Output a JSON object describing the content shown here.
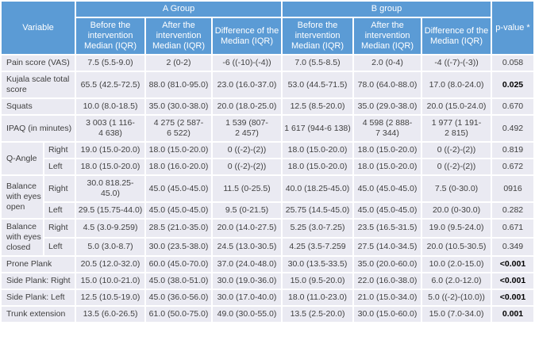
{
  "table": {
    "colors": {
      "header_blue": "#5b9bd5",
      "cell_bg": "#eaeaf2",
      "grid_white": "#ffffff",
      "body_text": "#3f3f3f",
      "header_text": "#ffffff"
    },
    "header": {
      "variable": "Variable",
      "group_a": "A Group",
      "group_b": "B group",
      "p_value": "p-value *",
      "sub_a_before": "Before the\nintervention\nMedian (IQR)",
      "sub_a_after": "After the\nintervention\nMedian (IQR)",
      "sub_a_diff": "Difference of the\nMedian (IQR)",
      "sub_b_before": "Before the\nintervention\nMedian (IQR)",
      "sub_b_after": "After the\nintervention\nMedian (IQR)",
      "sub_b_diff": "Difference of the\nMedian (IQR)"
    },
    "rows": [
      {
        "label": "Pain score (VAS)",
        "cells": [
          "7.5 (5.5-9.0)",
          "2 (0-2)",
          "-6 ((-10)-(-4))",
          "7.0 (5.5-8.5)",
          "2.0 (0-4)",
          "-4 ((-7)-(-3))"
        ],
        "p": "0.058",
        "bold": false
      },
      {
        "label": "Kujala scale total score",
        "cells": [
          "65.5 (42.5-72.5)",
          "88.0 (81.0-95.0)",
          "23.0 (16.0-37.0)",
          "53.0 (44.5-71.5)",
          "78.0 (64.0-88.0)",
          "17.0 (8.0-24.0)"
        ],
        "p": "0.025",
        "bold": true
      },
      {
        "label": "Squats",
        "cells": [
          "10.0 (8.0-18.5)",
          "35.0 (30.0-38.0)",
          "20.0 (18.0-25.0)",
          "12.5 (8.5-20.0)",
          "35.0 (29.0-38.0)",
          "20.0 (15.0-24.0)"
        ],
        "p": "0.670",
        "bold": false
      },
      {
        "label": "IPAQ (in minutes)",
        "cells": [
          "3 003 (1 116-4 638)",
          "4 275 (2 587-6 522)",
          "1 539 (807-2 457)",
          "1 617 (944-6 138)",
          "4 598 (2 888-7 344)",
          "1 977 (1 191-2 815)"
        ],
        "p": "0.492",
        "bold": false
      },
      {
        "label": "Q-Angle",
        "rowspan": 2,
        "side": "Right",
        "cells": [
          "19.0 (15.0-20.0)",
          "18.0 (15.0-20.0)",
          "0 ((-2)-(2))",
          "18.0 (15.0-20.0)",
          "18.0 (15.0-20.0)",
          "0 ((-2)-(2))"
        ],
        "p": "0.819",
        "bold": false
      },
      {
        "side": "Left",
        "cells": [
          "18.0 (15.0-20.0)",
          "18.0 (16.0-20.0)",
          "0 ((-2)-(2))",
          "18.0 (15.0-20.0)",
          "18.0 (15.0-20.0)",
          "0 ((-2)-(2))"
        ],
        "p": "0.672",
        "bold": false
      },
      {
        "label": "Balance with eyes open",
        "rowspan": 2,
        "side": "Right",
        "cells": [
          "30.0 818.25-45.0)",
          "45.0 (45.0-45.0)",
          "11.5 (0-25.5)",
          "40.0 (18.25-45.0)",
          "45.0 (45.0-45.0)",
          "7.5 (0-30.0)"
        ],
        "p": "0916",
        "bold": false
      },
      {
        "side": "Left",
        "cells": [
          "29.5 (15.75-44.0)",
          "45.0 (45.0-45.0)",
          "9.5 (0-21.5)",
          "25.75 (14.5-45.0)",
          "45.0 (45.0-45.0)",
          "20.0 (0-30.0)"
        ],
        "p": "0.282",
        "bold": false
      },
      {
        "label": "Balance with eyes closed",
        "rowspan": 2,
        "side": "Right",
        "cells": [
          "4.5 (3.0-9.259)",
          "28.5 (21.0-35.0)",
          "20.0 (14.0-27.5)",
          "5.25 (3.0-7.25)",
          "23.5 (16.5-31.5)",
          "19.0 (9.5-24.0)"
        ],
        "p": "0.671",
        "bold": false
      },
      {
        "side": "Left",
        "cells": [
          "5.0 (3.0-8.7)",
          "30.0 (23.5-38.0)",
          "24.5 (13.0-30.5)",
          "4.25 (3.5-7.259",
          "27.5 (14.0-34.5)",
          "20.0 (10.5-30.5)"
        ],
        "p": "0.349",
        "bold": false
      },
      {
        "label": "Prone Plank",
        "cells": [
          "20.5 (12.0-32.0)",
          "60.0 (45.0-70.0)",
          "37.0 (24.0-48.0)",
          "30.0 (13.5-33.5)",
          "35.0 (20.0-60.0)",
          "10.0 (2.0-15.0)"
        ],
        "p": "<0.001",
        "bold": true
      },
      {
        "label": "Side Plank: Right",
        "cells": [
          "15.0 (10.0-21.0)",
          "45.0 (38.0-51.0)",
          "30.0 (19.0-36.0)",
          "15.0 (9.5-20.0)",
          "22.0 (16.0-38.0)",
          "6.0 (2.0-12.0)"
        ],
        "p": "<0.001",
        "bold": true
      },
      {
        "label": "Side Plank: Left",
        "cells": [
          "12.5 (10.5-19.0)",
          "45.0 (36.0-56.0)",
          "30.0 (17.0-40.0)",
          "18.0 (11.0-23.0)",
          "21.0 (15.0-34.0)",
          "5.0 ((-2)-(10.0))"
        ],
        "p": "<0.001",
        "bold": true
      },
      {
        "label": "Trunk extension",
        "cells": [
          "13.5 (6.0-26.5)",
          "61.0 (50.0-75.0)",
          "49.0 (30.0-55.0)",
          "13.5 (2.5-20.0)",
          "30.0 (15.0-60.0)",
          "15.0 (7.0-34.0)"
        ],
        "p": "0.001",
        "bold": true
      }
    ]
  }
}
